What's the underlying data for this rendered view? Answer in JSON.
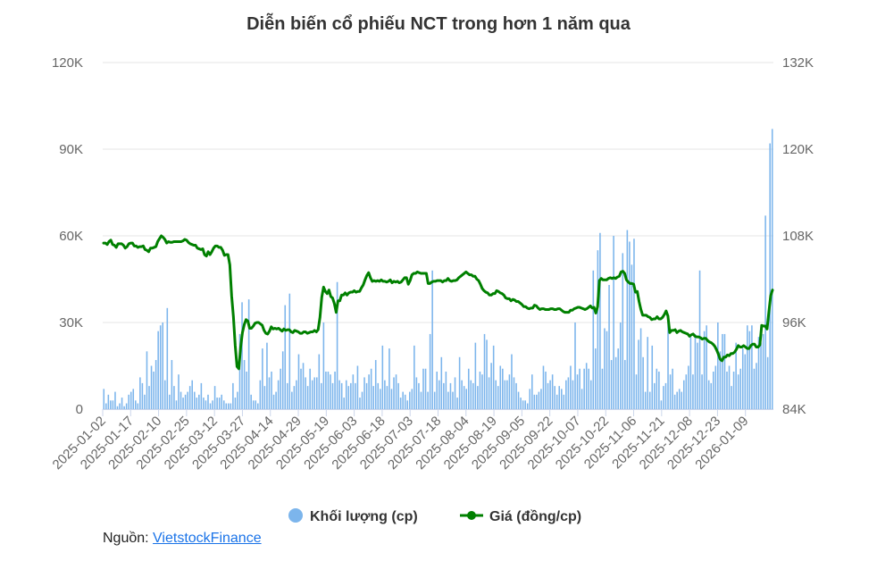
{
  "chart_data": {
    "type": "bar+line",
    "title": "Diễn biến cổ phiếu NCT trong hơn 1 năm qua",
    "x_tick_labels": [
      "2025-01-02",
      "2025-01-17",
      "2025-02-10",
      "2025-02-25",
      "2025-03-12",
      "2025-03-27",
      "2025-04-14",
      "2025-04-29",
      "2025-05-19",
      "2025-06-03",
      "2025-06-18",
      "2025-07-03",
      "2025-07-18",
      "2025-08-04",
      "2025-08-19",
      "2025-09-05",
      "2025-09-22",
      "2025-10-07",
      "2025-10-22",
      "2025-11-06",
      "2025-11-21",
      "2025-12-08",
      "2025-12-23",
      "2026-01-09"
    ],
    "y_left": {
      "ticks": [
        "0",
        "30K",
        "60K",
        "90K",
        "120K"
      ],
      "range": [
        0,
        120000
      ]
    },
    "y_right": {
      "ticks": [
        "84K",
        "96K",
        "108K",
        "120K",
        "132K"
      ],
      "range": [
        84000,
        132000
      ]
    },
    "grid": true,
    "legend_position": "bottom-center",
    "series": [
      {
        "name": "Khối lượng (cp)",
        "type": "bar",
        "axis": "left",
        "color": "#7cb5ec",
        "values": [
          7000,
          2000,
          5000,
          3000,
          3000,
          6000,
          1000,
          2000,
          4000,
          1000,
          2000,
          5000,
          6000,
          7000,
          3000,
          2000,
          11000,
          9000,
          5000,
          20000,
          8000,
          15000,
          13000,
          17000,
          27000,
          29000,
          30000,
          10000,
          35000,
          5000,
          17000,
          8000,
          3000,
          12000,
          6000,
          4000,
          5000,
          6000,
          8000,
          10000,
          6000,
          4000,
          5000,
          9000,
          4000,
          3000,
          5000,
          2000,
          3000,
          8000,
          4000,
          4000,
          5000,
          3000,
          2000,
          2000,
          2000,
          9000,
          4000,
          6000,
          26000,
          37000,
          17000,
          13000,
          38000,
          5000,
          3000,
          3000,
          2000,
          10000,
          21000,
          8000,
          23000,
          11000,
          13000,
          5000,
          6000,
          10000,
          14000,
          20000,
          36000,
          9000,
          40000,
          6000,
          8000,
          10000,
          19000,
          14000,
          16000,
          11000,
          8000,
          14000,
          10000,
          11000,
          11000,
          19000,
          9000,
          30000,
          13000,
          13000,
          12000,
          9000,
          13000,
          44000,
          10000,
          9000,
          4000,
          10000,
          8000,
          9000,
          12000,
          9000,
          15000,
          4000,
          6000,
          11000,
          9000,
          12000,
          14000,
          8000,
          17000,
          9000,
          7000,
          22000,
          10000,
          8000,
          21000,
          7000,
          11000,
          12000,
          9000,
          4000,
          6000,
          5000,
          3000,
          6000,
          7000,
          22000,
          11000,
          9000,
          6000,
          14000,
          14000,
          6000,
          26000,
          48000,
          6000,
          13000,
          10000,
          18000,
          9000,
          13000,
          6000,
          9000,
          6000,
          11000,
          4000,
          18000,
          10000,
          8000,
          7000,
          14000,
          10000,
          9000,
          23000,
          8000,
          13000,
          12000,
          26000,
          24000,
          11000,
          16000,
          22000,
          10000,
          8000,
          15000,
          14000,
          10000,
          10000,
          12000,
          19000,
          11000,
          9000,
          6000,
          4000,
          3000,
          3000,
          2000,
          7000,
          12000,
          5000,
          5000,
          6000,
          7000,
          15000,
          13000,
          9000,
          10000,
          12000,
          8000,
          5000,
          8000,
          7000,
          5000,
          10000,
          11000,
          15000,
          10000,
          30000,
          12000,
          14000,
          7000,
          14000,
          16000,
          14000,
          10000,
          48000,
          21000,
          55000,
          61000,
          14000,
          28000,
          27000,
          43000,
          17000,
          60000,
          18000,
          21000,
          30000,
          54000,
          17000,
          62000,
          58000,
          50000,
          59000,
          12000,
          24000,
          28000,
          18000,
          6000,
          25000,
          6000,
          22000,
          9000,
          14000,
          13000,
          3000,
          8000,
          9000,
          32000,
          12000,
          14000,
          5000,
          6000,
          7000,
          6000,
          10000,
          12000,
          15000,
          25000,
          12000,
          26000,
          23000,
          48000,
          12000,
          27000,
          29000,
          10000,
          9000,
          13000,
          15000,
          30000,
          20000,
          26000,
          26000,
          13000,
          15000,
          8000,
          13000,
          23000,
          12000,
          14000,
          21000,
          19000,
          29000,
          27000,
          29000,
          14000,
          16000,
          25000,
          23000,
          26000,
          67000,
          18000,
          92000,
          97000
        ]
      },
      {
        "name": "Giá (đồng/cp)",
        "type": "line",
        "axis": "right",
        "color": "#008000",
        "values": [
          107000,
          107000,
          106800,
          107200,
          107400,
          106800,
          106700,
          106400,
          106900,
          106900,
          106900,
          106700,
          106300,
          106500,
          106900,
          107000,
          107000,
          106600,
          106600,
          106400,
          106500,
          106500,
          106600,
          106100,
          106000,
          105800,
          106300,
          106300,
          106400,
          106500,
          107200,
          107600,
          108000,
          107800,
          107500,
          107000,
          107200,
          107100,
          107100,
          107200,
          107200,
          107200,
          107200,
          107200,
          107300,
          107500,
          107400,
          107100,
          106900,
          106800,
          106700,
          106700,
          106300,
          106200,
          106100,
          106200,
          105400,
          105200,
          105800,
          105400,
          105800,
          106300,
          106600,
          106600,
          106400,
          106400,
          106000,
          105300,
          105400,
          105400,
          104000,
          99700,
          96800,
          92800,
          89900,
          89600,
          92600,
          94600,
          95700,
          96400,
          96200,
          95200,
          95200,
          95500,
          95900,
          96000,
          96000,
          95800,
          95600,
          94900,
          94500,
          94400,
          94800,
          95400,
          95100,
          95200,
          95100,
          95200,
          95000,
          94800,
          95100,
          94900,
          95000,
          95000,
          94700,
          94600,
          94900,
          94800,
          94700,
          94500,
          94500,
          94700,
          94700,
          94500,
          94600,
          94700,
          94700,
          94900,
          94700,
          95000,
          96700,
          99500,
          100900,
          100300,
          100000,
          100500,
          99600,
          99400,
          98600,
          97400,
          99000,
          99000,
          99800,
          99800,
          100100,
          99800,
          100100,
          100200,
          100200,
          100400,
          100200,
          100300,
          100300,
          100800,
          101200,
          101900,
          102500,
          102900,
          102200,
          101700,
          101800,
          101700,
          101800,
          101700,
          101900,
          101700,
          101700,
          101600,
          101700,
          101900,
          101500,
          101700,
          101600,
          101700,
          101500,
          101600,
          101900,
          102200,
          102200,
          101300,
          101800,
          102600,
          102800,
          102800,
          103000,
          102900,
          102800,
          102800,
          102800,
          102800,
          101400,
          101400,
          101600,
          101700,
          101700,
          101800,
          101800,
          101800,
          101600,
          101800,
          101800,
          102100,
          101800,
          101700,
          101800,
          101800,
          101900,
          102200,
          102400,
          102600,
          102800,
          103000,
          102800,
          102600,
          102600,
          102400,
          102400,
          102000,
          101800,
          101300,
          100700,
          100400,
          100200,
          100100,
          99800,
          99800,
          100000,
          100000,
          100400,
          100300,
          100100,
          100000,
          99800,
          99400,
          99300,
          99300,
          99000,
          99200,
          99100,
          98900,
          98900,
          98700,
          98500,
          98200,
          98200,
          98000,
          97900,
          98000,
          98000,
          98400,
          98300,
          98000,
          97800,
          97900,
          97900,
          97800,
          97800,
          97800,
          97900,
          97900,
          97800,
          97800,
          97900,
          97900,
          97700,
          97500,
          97400,
          97400,
          97400,
          97700,
          97700,
          97900,
          98000,
          98100,
          98100,
          98000,
          97900,
          97800,
          97900,
          98100,
          98300,
          98000,
          98100,
          97300,
          98200,
          101800,
          102100,
          101900,
          101900,
          101900,
          102100,
          102200,
          102100,
          102200,
          102100,
          102300,
          102400,
          103000,
          103100,
          102800,
          101900,
          101600,
          101400,
          101400,
          101300,
          100200,
          100300,
          98900,
          97800,
          97000,
          97000,
          97000,
          96800,
          96700,
          96400,
          96500,
          96500,
          96800,
          96500,
          96500,
          96700,
          97100,
          97600,
          96900,
          94600,
          94900,
          94900,
          95000,
          94600,
          94800,
          94900,
          94700,
          94600,
          94500,
          94400,
          94100,
          94300,
          94400,
          94100,
          94000,
          94000,
          93900,
          93700,
          93800,
          93800,
          93500,
          93300,
          93200,
          93000,
          92700,
          92200,
          91600,
          90900,
          90700,
          91200,
          91200,
          91500,
          91400,
          91700,
          91700,
          91900,
          92300,
          92800,
          92600,
          92600,
          92800,
          92600,
          92400,
          92400,
          92800,
          93000,
          93000,
          92600,
          92600,
          92900,
          95600,
          95500,
          95500,
          95100,
          97500,
          99700,
          100500
        ]
      }
    ]
  },
  "legend": {
    "volume_label": "Khối lượng (cp)",
    "price_label": "Giá (đồng/cp)"
  },
  "source": {
    "prefix": "Nguồn: ",
    "link_text": "VietstockFinance"
  },
  "colors": {
    "volume": "#7cb5ec",
    "price": "#008000",
    "grid": "#e6e6e6",
    "axis_text": "#666666"
  }
}
